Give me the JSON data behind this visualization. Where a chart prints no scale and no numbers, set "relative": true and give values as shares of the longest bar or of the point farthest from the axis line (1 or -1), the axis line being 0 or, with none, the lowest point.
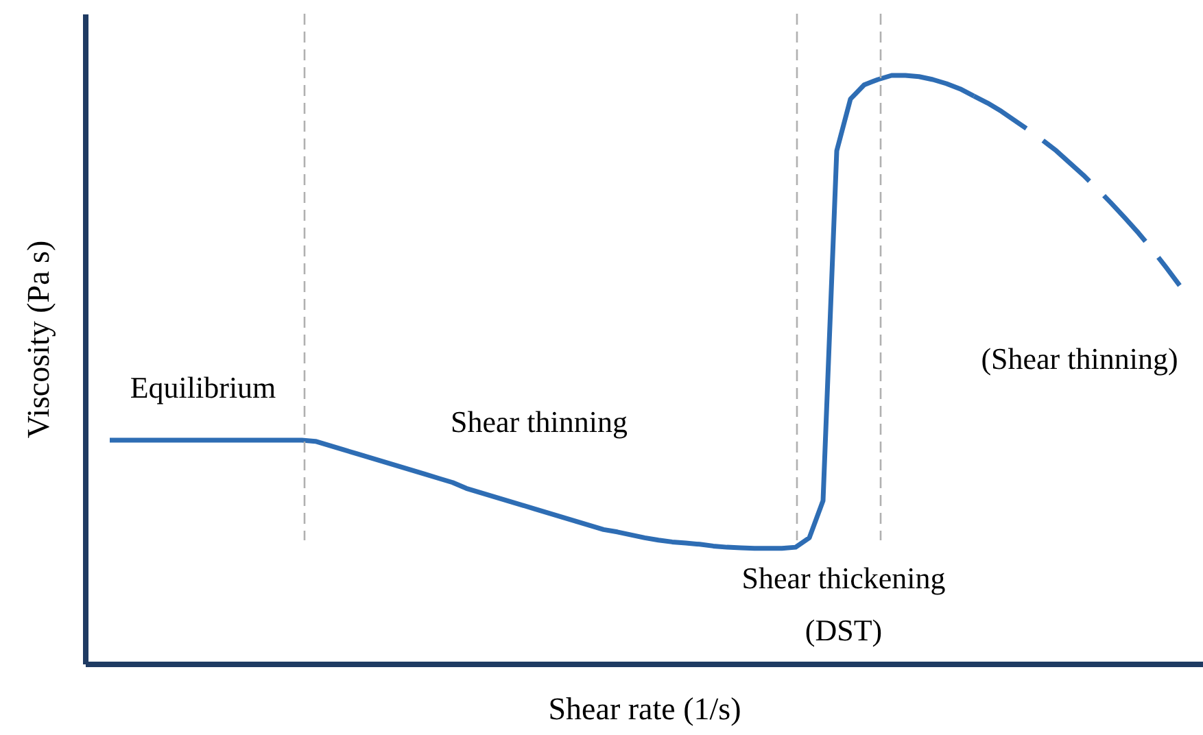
{
  "chart_data": {
    "type": "line",
    "relative": true,
    "xlabel": "Shear rate (1/s)",
    "ylabel": "Viscosity (Pa s)",
    "categories": [
      null,
      null,
      null,
      null,
      null,
      null,
      null,
      null,
      null,
      null,
      null,
      null,
      null,
      null,
      null,
      null,
      null,
      null,
      null,
      null,
      null,
      null,
      null,
      null,
      null,
      null,
      null,
      null,
      null,
      null,
      null,
      null,
      null,
      null,
      null,
      null,
      null,
      null,
      null,
      null,
      null,
      null,
      null,
      null,
      null,
      null,
      null,
      null,
      null,
      null,
      null,
      null,
      null,
      null,
      null,
      null,
      null,
      null,
      null,
      null,
      null,
      null,
      null,
      null,
      null,
      null,
      null,
      null,
      null,
      null,
      null,
      null,
      null,
      null,
      null,
      null,
      null,
      null,
      null
    ],
    "series": [
      {
        "color": "#2e6db4",
        "line_style": "solid",
        "values": [
          0.38,
          0.38,
          0.38,
          0.38,
          0.38,
          0.38,
          0.38,
          0.38,
          0.38,
          0.38,
          0.38,
          0.38,
          0.38,
          0.38,
          0.38,
          0.378,
          0.371,
          0.364,
          0.357,
          0.35,
          0.343,
          0.336,
          0.329,
          0.322,
          0.315,
          0.308,
          0.298,
          0.291,
          0.284,
          0.277,
          0.27,
          0.263,
          0.256,
          0.249,
          0.242,
          0.235,
          0.228,
          0.224,
          0.219,
          0.214,
          0.21,
          0.207,
          0.205,
          0.203,
          0.2,
          0.198,
          0.197,
          0.196,
          0.196,
          0.196,
          0.198,
          0.214,
          0.277,
          0.872,
          0.96,
          0.984,
          0.993,
          1.0,
          1.0,
          0.998,
          0.993,
          0.986,
          0.977,
          0.965,
          null,
          null,
          null,
          null,
          null,
          null,
          null,
          null,
          null,
          null,
          null,
          null,
          null,
          null,
          null
        ]
      },
      {
        "color": "#2e6db4",
        "line_style": "dashed",
        "values": [
          null,
          null,
          null,
          null,
          null,
          null,
          null,
          null,
          null,
          null,
          null,
          null,
          null,
          null,
          null,
          null,
          null,
          null,
          null,
          null,
          null,
          null,
          null,
          null,
          null,
          null,
          null,
          null,
          null,
          null,
          null,
          null,
          null,
          null,
          null,
          null,
          null,
          null,
          null,
          null,
          null,
          null,
          null,
          null,
          null,
          null,
          null,
          null,
          null,
          null,
          null,
          null,
          null,
          null,
          null,
          null,
          null,
          null,
          null,
          null,
          null,
          null,
          null,
          0.965,
          0.953,
          0.939,
          0.923,
          0.907,
          0.89,
          0.872,
          0.851,
          0.83,
          0.807,
          0.783,
          0.758,
          0.732,
          0.704,
          0.674,
          0.643
        ]
      }
    ],
    "annotations": [
      "Equilibrium",
      "Shear thinning",
      "Shear thickening",
      "(DST)",
      "(Shear thinning)"
    ]
  }
}
